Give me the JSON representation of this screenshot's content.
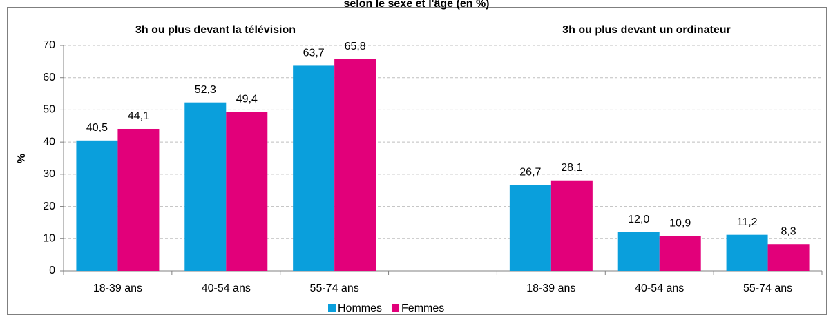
{
  "chart_data": {
    "type": "bar",
    "title": "selon le sexe et l'âge (en %)",
    "annotations": [
      "3h ou plus devant la télévision",
      "3h ou plus devant un ordinateur"
    ],
    "y_label": "%",
    "categories": [
      "18-39 ans",
      "40-54 ans",
      "55-74 ans",
      null,
      "18-39 ans",
      "40-54 ans",
      "55-74 ans"
    ],
    "series": [
      {
        "name": "Hommes",
        "color": "#0a9fdc",
        "values": [
          40.5,
          52.3,
          63.7,
          null,
          26.7,
          12.0,
          11.2
        ],
        "value_labels": [
          "40,5",
          "52,3",
          "63,7",
          null,
          "26,7",
          "12,0",
          "11,2"
        ]
      },
      {
        "name": "Femmes",
        "color": "#e2007a",
        "values": [
          44.1,
          49.4,
          65.8,
          null,
          28.1,
          10.9,
          8.3
        ],
        "value_labels": [
          "44,1",
          "49,4",
          "65,8",
          null,
          "28,1",
          "10,9",
          "8,3"
        ]
      }
    ],
    "ylim": [
      0,
      70
    ],
    "yticks": [
      0,
      10,
      20,
      30,
      40,
      50,
      60,
      70
    ],
    "grid": true,
    "legend": "bottom"
  }
}
